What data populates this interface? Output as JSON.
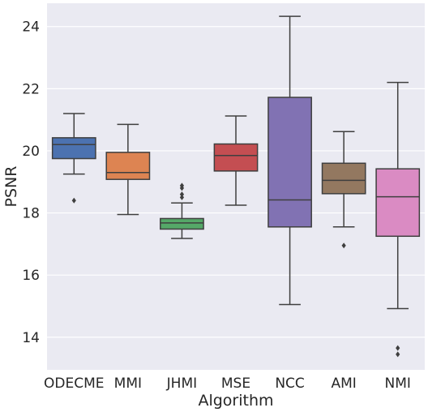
{
  "chart_data": {
    "type": "box",
    "xlabel": "Algorithm",
    "ylabel": "PSNR",
    "ylim": [
      12.95,
      24.75
    ],
    "yticks": [
      14,
      16,
      18,
      20,
      22,
      24
    ],
    "grid": "horizontal",
    "background": "#eaeaf2",
    "categories": [
      "ODECME",
      "MMI",
      "JHMI",
      "MSE",
      "NCC",
      "AMI",
      "NMI"
    ],
    "boxes": [
      {
        "name": "ODECME",
        "color": "#4c72b0",
        "whisker_low": 19.25,
        "q1": 19.75,
        "median": 20.2,
        "q3": 20.42,
        "whisker_high": 21.2,
        "outliers": [
          18.4
        ]
      },
      {
        "name": "MMI",
        "color": "#dd8452",
        "whisker_low": 17.95,
        "q1": 19.08,
        "median": 19.3,
        "q3": 19.95,
        "whisker_high": 20.85,
        "outliers": []
      },
      {
        "name": "JHMI",
        "color": "#55a868",
        "whisker_low": 17.18,
        "q1": 17.48,
        "median": 17.68,
        "q3": 17.82,
        "whisker_high": 18.32,
        "outliers": [
          18.5,
          18.6,
          18.8,
          18.88
        ]
      },
      {
        "name": "MSE",
        "color": "#c44e52",
        "whisker_low": 18.25,
        "q1": 19.35,
        "median": 19.85,
        "q3": 20.22,
        "whisker_high": 21.12,
        "outliers": []
      },
      {
        "name": "NCC",
        "color": "#8172b3",
        "whisker_low": 15.05,
        "q1": 17.55,
        "median": 18.42,
        "q3": 21.72,
        "whisker_high": 24.33,
        "outliers": []
      },
      {
        "name": "AMI",
        "color": "#937860",
        "whisker_low": 17.55,
        "q1": 18.62,
        "median": 19.05,
        "q3": 19.6,
        "whisker_high": 20.62,
        "outliers": [
          16.95
        ]
      },
      {
        "name": "NMI",
        "color": "#da8bc3",
        "whisker_low": 14.92,
        "q1": 17.25,
        "median": 18.52,
        "q3": 19.42,
        "whisker_high": 22.2,
        "outliers": [
          13.45,
          13.65
        ]
      }
    ]
  }
}
